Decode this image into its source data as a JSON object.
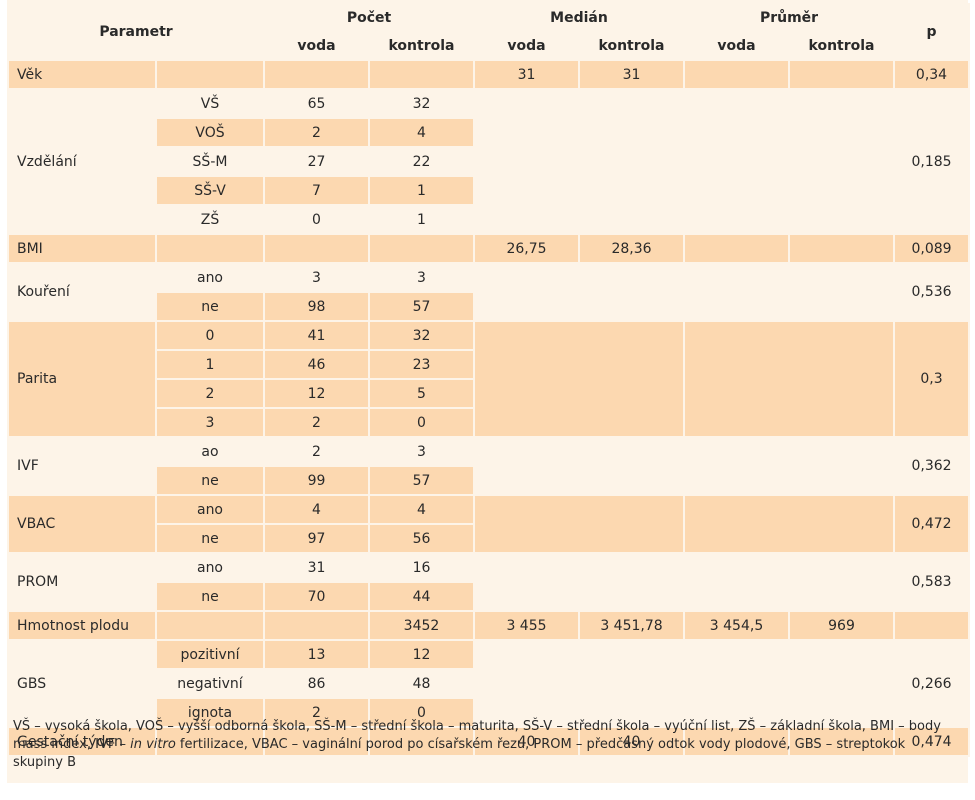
{
  "header": {
    "parametr": "Parametr",
    "pocet": "Počet",
    "median": "Medián",
    "prumer": "Průměr",
    "p": "p",
    "voda": "voda",
    "kontrola": "kontrola"
  },
  "rows": {
    "vek": {
      "label": "Věk",
      "med_voda": "31",
      "med_kontrola": "31",
      "p": "0,34"
    },
    "vzdelani": {
      "label": "Vzdělání",
      "p": "0,185",
      "items": [
        {
          "sub": "VŠ",
          "voda": "65",
          "kontrola": "32"
        },
        {
          "sub": "VOŠ",
          "voda": "2",
          "kontrola": "4"
        },
        {
          "sub": "SŠ-M",
          "voda": "27",
          "kontrola": "22"
        },
        {
          "sub": "SŠ-V",
          "voda": "7",
          "kontrola": "1"
        },
        {
          "sub": "ZŠ",
          "voda": "0",
          "kontrola": "1"
        }
      ]
    },
    "bmi": {
      "label": "BMI",
      "med_voda": "26,75",
      "med_kontrola": "28,36",
      "p": "0,089"
    },
    "koureni": {
      "label": "Kouření",
      "p": "0,536",
      "items": [
        {
          "sub": "ano",
          "voda": "3",
          "kontrola": "3"
        },
        {
          "sub": "ne",
          "voda": "98",
          "kontrola": "57"
        }
      ]
    },
    "parita": {
      "label": "Parita",
      "p": "0,3",
      "items": [
        {
          "sub": "0",
          "voda": "41",
          "kontrola": "32"
        },
        {
          "sub": "1",
          "voda": "46",
          "kontrola": "23"
        },
        {
          "sub": "2",
          "voda": "12",
          "kontrola": "5"
        },
        {
          "sub": "3",
          "voda": "2",
          "kontrola": "0"
        }
      ]
    },
    "ivf": {
      "label": "IVF",
      "p": "0,362",
      "items": [
        {
          "sub": "ao",
          "voda": "2",
          "kontrola": "3"
        },
        {
          "sub": "ne",
          "voda": "99",
          "kontrola": "57"
        }
      ]
    },
    "vbac": {
      "label": "VBAC",
      "p": "0,472",
      "items": [
        {
          "sub": "ano",
          "voda": "4",
          "kontrola": "4"
        },
        {
          "sub": "ne",
          "voda": "97",
          "kontrola": "56"
        }
      ]
    },
    "prom": {
      "label": "PROM",
      "p": "0,583",
      "items": [
        {
          "sub": "ano",
          "voda": "31",
          "kontrola": "16"
        },
        {
          "sub": "ne",
          "voda": "70",
          "kontrola": "44"
        }
      ]
    },
    "hmotnost": {
      "label": "Hmotnost plodu",
      "poc_kontrola": "3452",
      "med_voda": "3 455",
      "med_kontrola": "3 451,78",
      "pr_voda": "3 454,5",
      "pr_kontrola": "969"
    },
    "gbs": {
      "label": "GBS",
      "p": "0,266",
      "items": [
        {
          "sub": "pozitivní",
          "voda": "13",
          "kontrola": "12"
        },
        {
          "sub": "negativní",
          "voda": "86",
          "kontrola": "48"
        },
        {
          "sub": "ignota",
          "voda": "2",
          "kontrola": "0"
        }
      ]
    },
    "gestacni": {
      "label": "Gestační týden",
      "med_voda": "40",
      "med_kontrola": "40",
      "p": "0,474"
    }
  },
  "legend": {
    "part1": "VŠ – vysoká škola, VOŠ – vyšší odborná škola, SŠ-M – střední škola – maturita, SŠ-V – střední škola – vyúční list, ZŠ – základní škola, BMI – body mass index, IVF – ",
    "italic": "in vitro",
    "part2": " fertilizace, VBAC – vaginální porod po císařském řezu, PROM – předčasný odtok vody plodové, GBS – streptokok skupiny B"
  }
}
